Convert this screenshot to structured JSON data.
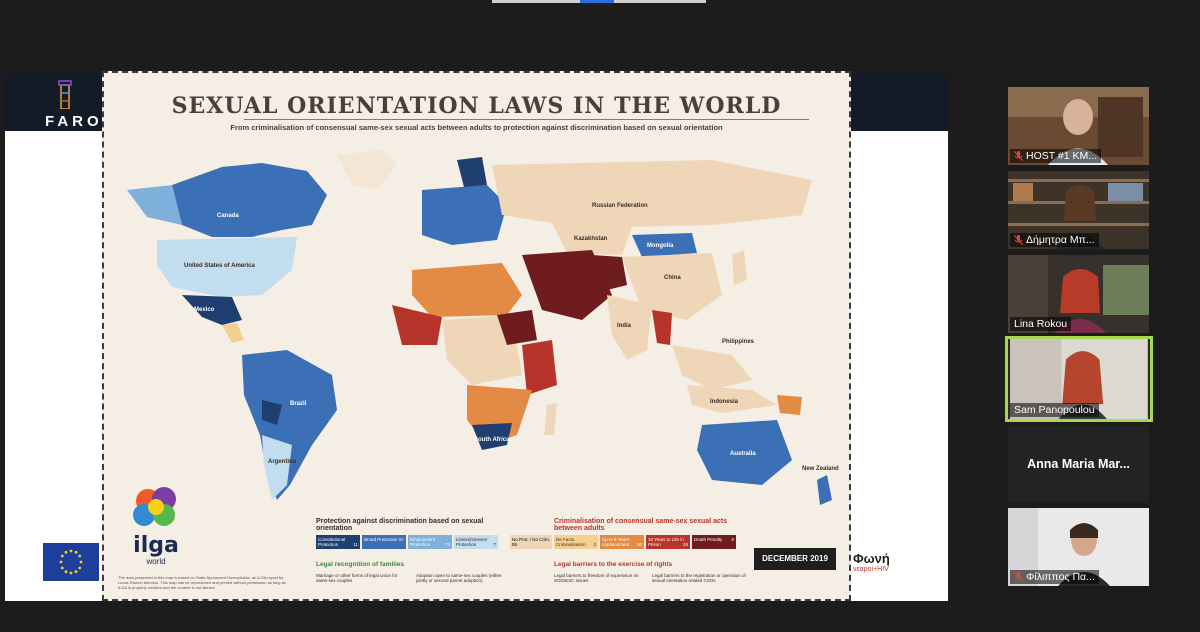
{
  "presentation": {
    "header_logo_text": "FARO",
    "poster": {
      "title": "SEXUAL ORIENTATION LAWS IN THE WORLD",
      "subtitle": "From criminalisation of consensual same-sex sexual acts between adults to protection against discrimination based on sexual orientation",
      "map_labels": {
        "canada": "Canada",
        "usa": "United States of America",
        "russia": "Russian Federation",
        "mongolia": "Mongolia",
        "china": "China",
        "kazakhstan": "Kazakhstan",
        "india": "India",
        "brazil": "Brazil",
        "australia": "Australia",
        "indonesia": "Indonesia",
        "mexico": "Mexico",
        "argentina": "Argentina",
        "philippines": "Philippines",
        "new_zealand": "New Zealand",
        "south_africa": "South Africa"
      },
      "logo_text": "ilga",
      "logo_subtext": "world",
      "note": "The data presented in this map is based on State-Sponsored Homophobia, an ILGA report by Lucas Ramón Mendos. This map can be reproduced and printed without permission as long as ILGA is properly credited and the content is not altered.",
      "legend": {
        "protection_title": "Protection against discrimination based on sexual orientation",
        "protection_items": [
          {
            "label": "Constitutional Protection",
            "count": "11",
            "color": "#1f3f70"
          },
          {
            "label": "Broad Protection",
            "count": "57",
            "color": "#3b6fb6"
          },
          {
            "label": "Employment Protection",
            "count": "73",
            "color": "#7fb0db"
          },
          {
            "label": "Limited/Uneven Protection",
            "count": "7",
            "color": "#c2dcf0"
          }
        ],
        "no_crim_label": "No Prot. / No Crim.",
        "no_crim_count": "55",
        "criminal_title": "Criminalisation of consensual same-sex sexual acts between adults",
        "criminal_items": [
          {
            "label": "De Facto Criminalisation",
            "count": "2",
            "color": "#f3d08f"
          },
          {
            "label": "Up to 8 Years Imprisonment",
            "count": "30",
            "color": "#e38a45"
          },
          {
            "label": "10 Years to Life in Prison",
            "count": "26",
            "color": "#b7342a"
          },
          {
            "label": "Death Penalty",
            "count": "6",
            "color": "#6e1c1e"
          }
        ],
        "families_title": "Legal recognition of families",
        "families_item1": "Marriage or other forms of legal union for same-sex couples",
        "families_item2": "Adoption open to same-sex couples (either jointly or second parent adoption)",
        "barriers_title": "Legal barriers to the exercise of rights",
        "barriers_item1": "Legal barriers to freedom of expression on SOGIESC issues",
        "barriers_item2": "Legal barriers to the registration or operation of sexual orientation related CSOs"
      },
      "date": "DECEMBER 2019"
    },
    "sponsor_logo": "Φωνή",
    "sponsor_sub": "νεαροί+HIV"
  },
  "participants": [
    {
      "name": "HOST #1 KM...",
      "muted": true,
      "active": false,
      "scene": "office"
    },
    {
      "name": "Δήμητρα Μπ...",
      "muted": true,
      "active": false,
      "scene": "bookshelf"
    },
    {
      "name": "Lina Rokou",
      "muted": false,
      "active": false,
      "scene": "bookshelf2"
    },
    {
      "name": "Sam Panopoulou",
      "muted": false,
      "active": true,
      "scene": "room"
    },
    {
      "name": "Anna Maria Mar...",
      "muted": false,
      "active": false,
      "scene": "none"
    },
    {
      "name": "Φίλιππος Πα...",
      "muted": true,
      "active": false,
      "scene": "white"
    }
  ]
}
